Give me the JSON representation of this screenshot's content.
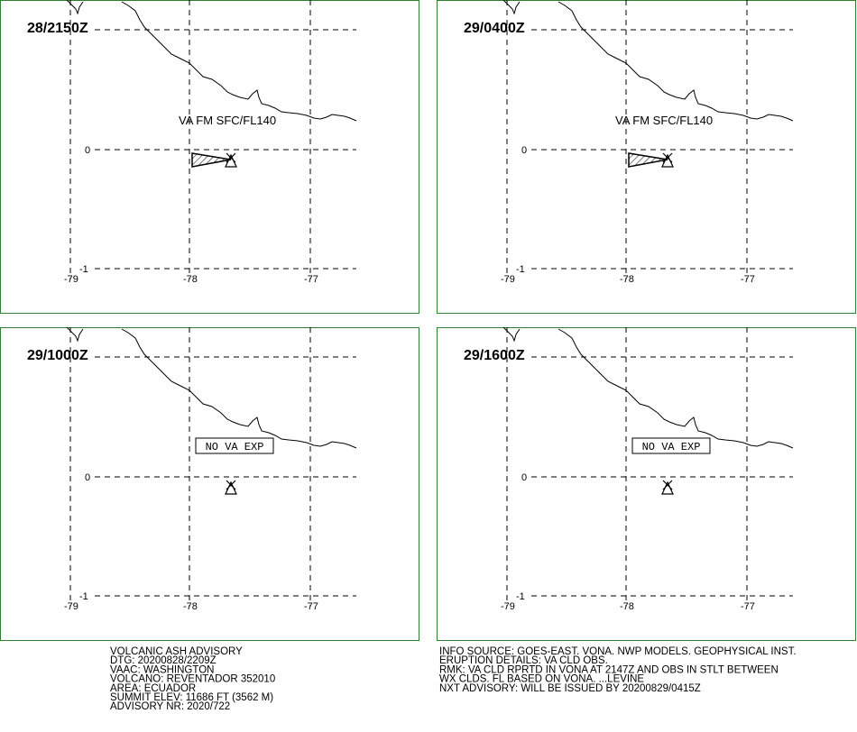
{
  "panels": [
    {
      "time": "28/2150Z",
      "label": "VA FM SFC/FL140",
      "lon_labels": [
        "-79",
        "-78",
        "-77"
      ],
      "lat_labels": [
        "0",
        "-1"
      ]
    },
    {
      "time": "29/0400Z",
      "label": "VA FM SFC/FL140",
      "lon_labels": [
        "-79",
        "-78",
        "-77"
      ],
      "lat_labels": [
        "0",
        "-1"
      ]
    },
    {
      "time": "29/1000Z",
      "label": "NO VA EXP",
      "lon_labels": [
        "-79",
        "-78",
        "-77"
      ],
      "lat_labels": [
        "0",
        "-1"
      ]
    },
    {
      "time": "29/1600Z",
      "label": "NO VA EXP",
      "lon_labels": [
        "-79",
        "-78",
        "-77"
      ],
      "lat_labels": [
        "0",
        "-1"
      ]
    }
  ],
  "advisory_left": [
    "VOLCANIC ASH ADVISORY",
    "DTG: 20200828/2209Z",
    "VAAC: WASHINGTON",
    "VOLCANO: REVENTADOR 352010",
    "AREA: ECUADOR",
    "SUMMIT ELEV: 11686 FT (3562 M)",
    "ADVISORY NR: 2020/722"
  ],
  "advisory_right": [
    "INFO SOURCE: GOES-EAST. VONA. NWP MODELS. GEOPHYSICAL INST.",
    "ERUPTION DETAILS: VA CLD OBS.",
    "RMK: VA CLD RPRTD IN VONA AT 2147Z AND OBS IN STLT BETWEEN",
    "WX CLDS. FL BASED ON VONA. ...LEVINE",
    "NXT ADVISORY: WILL BE ISSUED BY 20200829/0415Z"
  ]
}
